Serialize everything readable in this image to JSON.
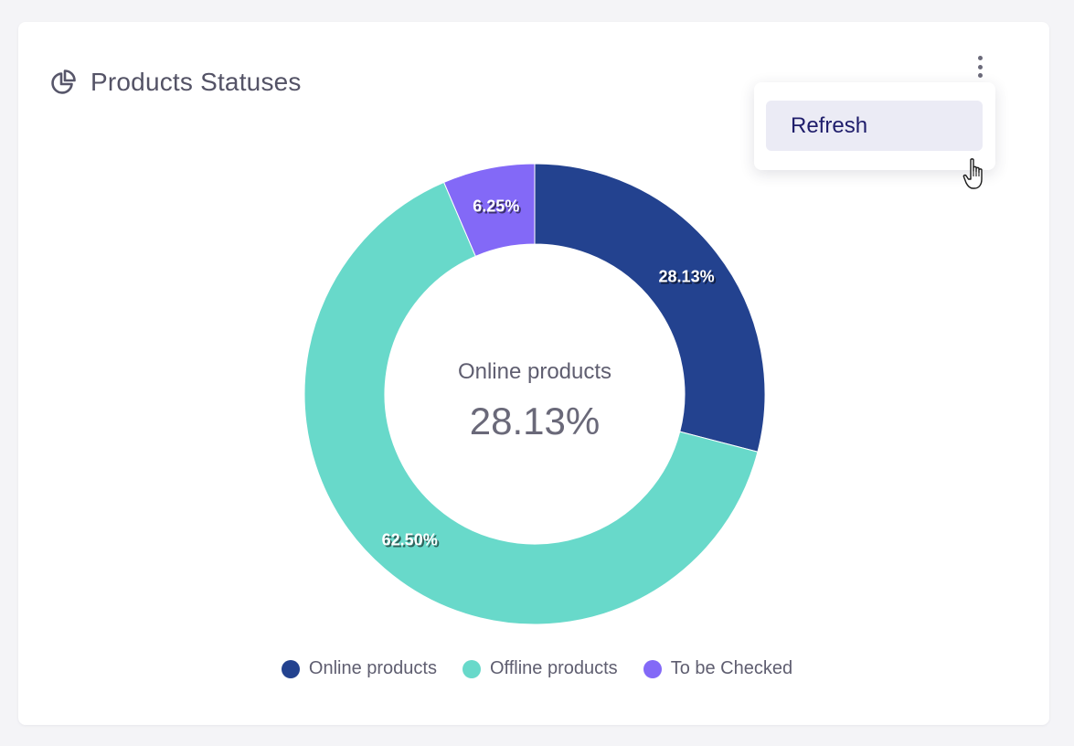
{
  "card": {
    "title": "Products Statuses",
    "title_icon": "pie-chart-icon",
    "menu_icon": "kebab-menu-icon"
  },
  "menu": {
    "items": [
      {
        "label": "Refresh"
      }
    ],
    "cursor_icon": "hand-pointer-icon"
  },
  "chart_data": {
    "type": "pie",
    "donut": true,
    "categories": [
      "Online products",
      "Offline products",
      "To be Checked"
    ],
    "values": [
      28.13,
      62.5,
      6.25
    ],
    "slice_labels": [
      "28.13%",
      "62.50%",
      "6.25%"
    ],
    "colors": [
      "#23428f",
      "#68d9ca",
      "#8369f7"
    ],
    "center": {
      "label": "Online products",
      "value": "28.13%"
    },
    "legend_position": "bottom"
  }
}
